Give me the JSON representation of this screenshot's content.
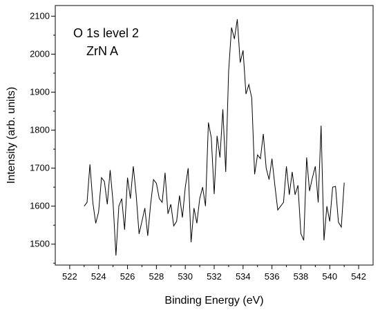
{
  "chart_data": {
    "type": "line",
    "title": "",
    "xlabel": "Binding Energy (eV)",
    "ylabel": "Intensity (arb. units)",
    "xlim": [
      521,
      543
    ],
    "ylim": [
      1445,
      2128
    ],
    "xticks": [
      522,
      524,
      526,
      528,
      530,
      532,
      534,
      536,
      538,
      540,
      542
    ],
    "yticks": [
      1500,
      1600,
      1700,
      1800,
      1900,
      2000,
      2100
    ],
    "grid": false,
    "legend": "none",
    "annotations": [
      "O 1s level 2",
      "ZrN A"
    ],
    "series": [
      {
        "color": "#000000",
        "x": [
          523.0,
          523.2,
          523.4,
          523.6,
          523.8,
          524.0,
          524.2,
          524.4,
          524.6,
          524.8,
          525.0,
          525.2,
          525.4,
          525.6,
          525.8,
          526.0,
          526.2,
          526.4,
          526.6,
          526.8,
          527.0,
          527.2,
          527.4,
          527.6,
          527.8,
          528.0,
          528.2,
          528.4,
          528.6,
          528.8,
          529.0,
          529.2,
          529.4,
          529.6,
          529.8,
          530.0,
          530.2,
          530.4,
          530.6,
          530.8,
          531.0,
          531.2,
          531.4,
          531.6,
          531.8,
          532.0,
          532.2,
          532.4,
          532.6,
          532.8,
          533.0,
          533.2,
          533.4,
          533.6,
          533.8,
          534.0,
          534.2,
          534.4,
          534.6,
          534.8,
          535.0,
          535.2,
          535.4,
          535.6,
          535.8,
          536.0,
          536.2,
          536.4,
          536.6,
          536.8,
          537.0,
          537.2,
          537.4,
          537.6,
          537.8,
          538.0,
          538.2,
          538.4,
          538.6,
          538.8,
          539.0,
          539.2,
          539.4,
          539.6,
          539.8,
          540.0,
          540.2,
          540.4,
          540.6,
          540.8,
          541.0
        ],
        "y": [
          1600,
          1610,
          1710,
          1610,
          1555,
          1585,
          1675,
          1665,
          1605,
          1695,
          1610,
          1470,
          1600,
          1620,
          1538,
          1675,
          1620,
          1705,
          1630,
          1527,
          1560,
          1595,
          1522,
          1605,
          1670,
          1660,
          1620,
          1610,
          1688,
          1580,
          1605,
          1548,
          1560,
          1628,
          1570,
          1650,
          1700,
          1505,
          1595,
          1555,
          1620,
          1650,
          1600,
          1820,
          1780,
          1632,
          1785,
          1728,
          1855,
          1690,
          1955,
          2070,
          2040,
          2092,
          1978,
          2010,
          1895,
          1920,
          1885,
          1684,
          1735,
          1725,
          1790,
          1700,
          1670,
          1725,
          1655,
          1590,
          1600,
          1610,
          1705,
          1630,
          1690,
          1630,
          1655,
          1528,
          1510,
          1728,
          1640,
          1675,
          1705,
          1610,
          1812,
          1510,
          1600,
          1560,
          1650,
          1652,
          1558,
          1545,
          1662
        ]
      }
    ]
  }
}
